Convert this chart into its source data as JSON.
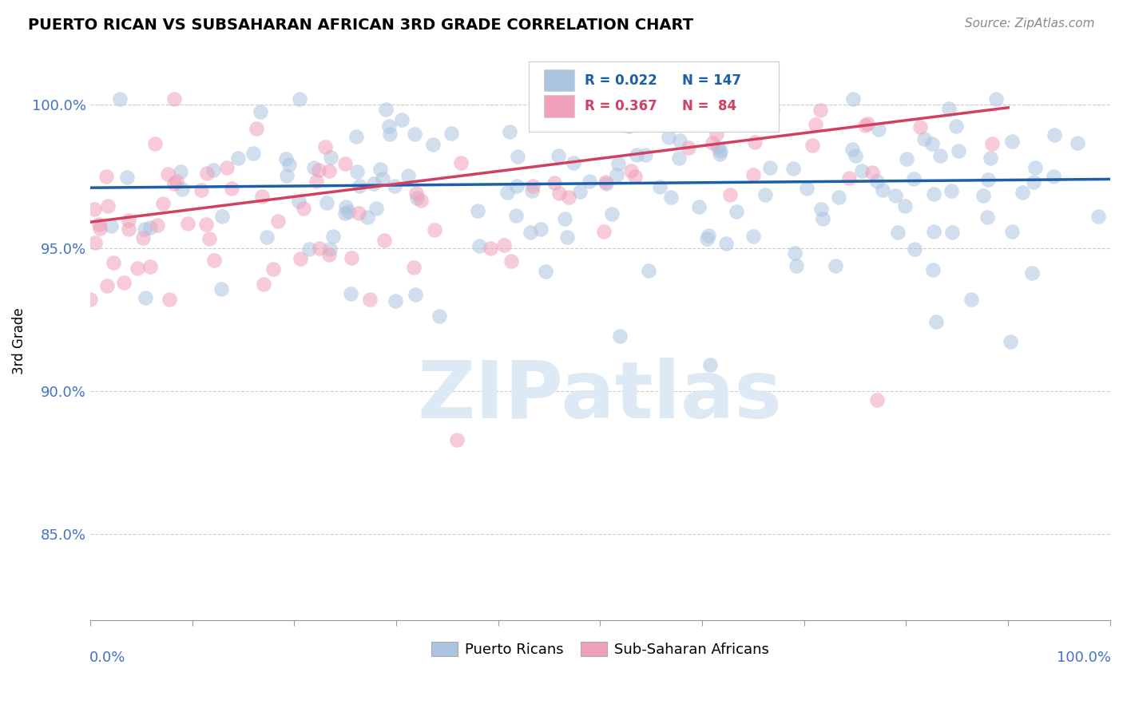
{
  "title": "PUERTO RICAN VS SUBSAHARAN AFRICAN 3RD GRADE CORRELATION CHART",
  "source": "Source: ZipAtlas.com",
  "ylabel": "3rd Grade",
  "x_range": [
    0.0,
    1.0
  ],
  "y_range": [
    0.82,
    1.015
  ],
  "y_ticks": [
    0.85,
    0.9,
    0.95,
    1.0
  ],
  "y_tick_labels": [
    "85.0%",
    "90.0%",
    "95.0%",
    "100.0%"
  ],
  "legend_r_blue": "R = 0.022",
  "legend_n_blue": "N = 147",
  "legend_r_pink": "R = 0.367",
  "legend_n_pink": "N =  84",
  "blue_color": "#aac4e0",
  "pink_color": "#f0a0b8",
  "blue_line_color": "#1a5fa8",
  "pink_line_color": "#d04060",
  "tick_color": "#4472c4",
  "grid_color": "#cccccc",
  "blue_trend_x": [
    0.0,
    1.0
  ],
  "blue_trend_y": [
    0.971,
    0.974
  ],
  "pink_trend_x": [
    0.0,
    0.9
  ],
  "pink_trend_y": [
    0.959,
    0.999
  ],
  "watermark_text": "ZIPatlas",
  "watermark_color": "#ddeaf5"
}
